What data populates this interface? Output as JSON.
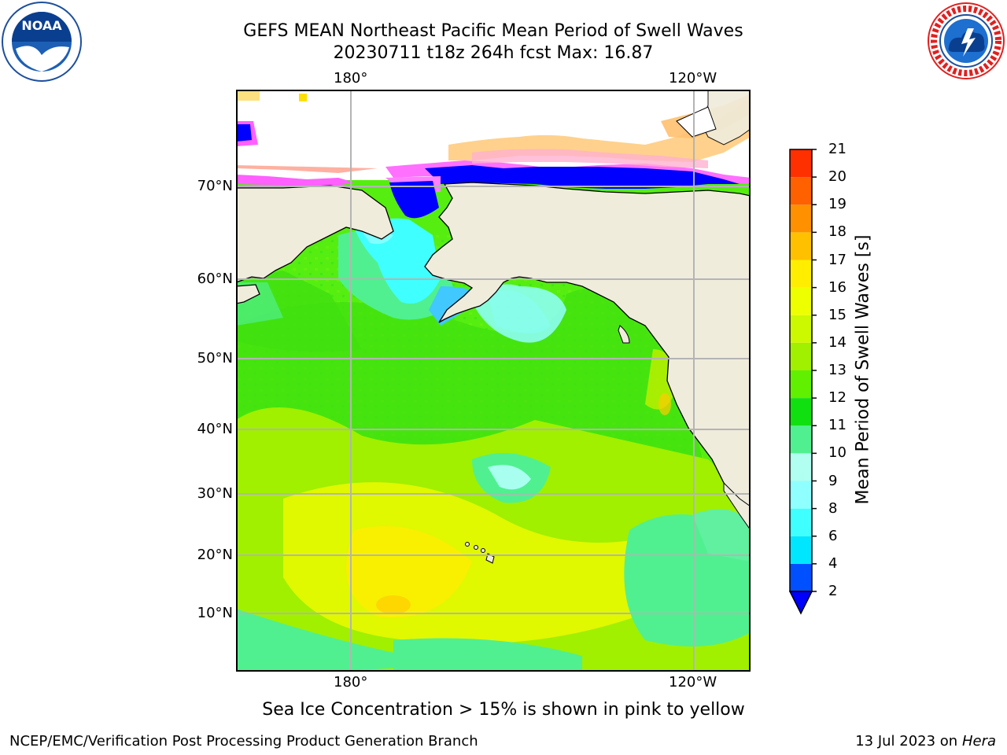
{
  "header": {
    "title_line1": "GEFS MEAN Northeast Pacific Mean Period of Swell Waves",
    "title_line2": "20230711 t18z 264h fcst   Max: 16.87"
  },
  "logos": {
    "left": {
      "text": "NOAA",
      "icon": "noaa-logo-icon"
    },
    "right": {
      "icon": "nws-logo-icon"
    }
  },
  "map": {
    "lon_labels_top": [
      "180°",
      "120°W"
    ],
    "lon_labels_bottom": [
      "180°",
      "120°W"
    ],
    "lat_labels": [
      "70°N",
      "60°N",
      "50°N",
      "40°N",
      "30°N",
      "20°N",
      "10°N"
    ],
    "land_color": "#efecdc",
    "ocean_dominant_color": "#55ee10",
    "sea_ice_color": "#ff60ff"
  },
  "colorbar": {
    "label": "Mean Period of Swell Waves [s]",
    "ticks": [
      "2",
      "4",
      "6",
      "8",
      "9",
      "10",
      "11",
      "12",
      "13",
      "14",
      "15",
      "16",
      "17",
      "18",
      "19",
      "20",
      "21"
    ],
    "colors": [
      "#0050ff",
      "#00e6ff",
      "#40ffff",
      "#90ffff",
      "#b0fff0",
      "#50f090",
      "#10e010",
      "#60f000",
      "#a0f000",
      "#ccf800",
      "#eeff00",
      "#ffee00",
      "#ffc000",
      "#ff9000",
      "#ff6000",
      "#ff3000",
      "#ff0000"
    ],
    "extend_color": "#0000ff"
  },
  "caption": "Sea Ice Concentration > 15% is shown in pink to yellow",
  "footer": {
    "left": "NCEP/EMC/Verification Post Processing Product Generation Branch",
    "right_prefix": "13 Jul 2023 on ",
    "right_host": "Hera"
  }
}
